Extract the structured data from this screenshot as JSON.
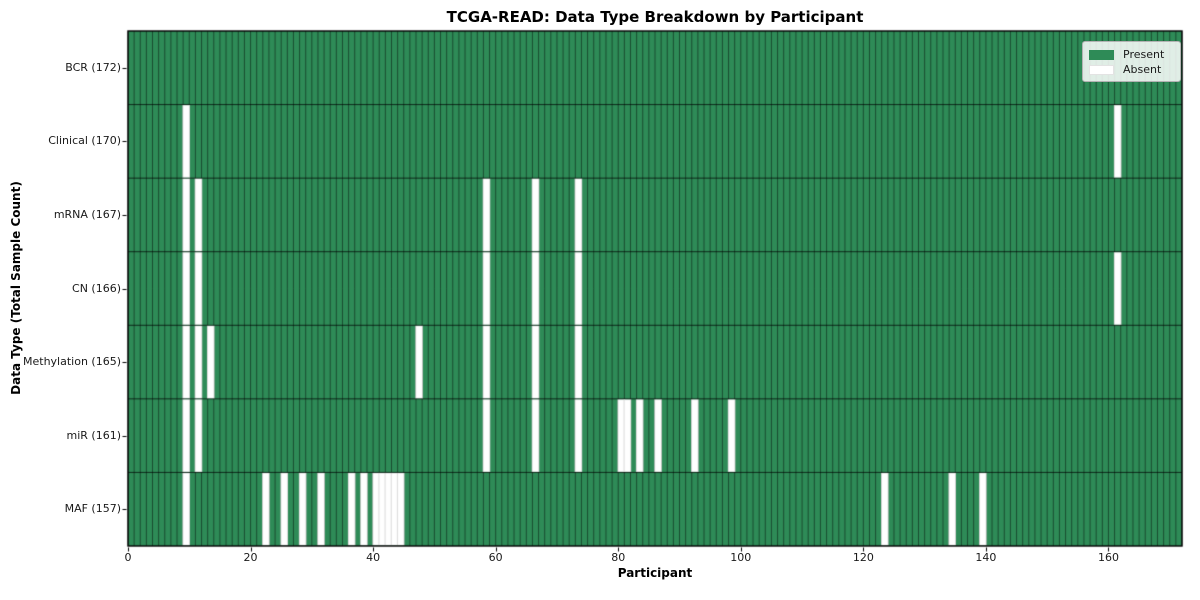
{
  "chart_data": {
    "type": "heatmap",
    "title": "TCGA-READ: Data Type Breakdown by Participant",
    "xlabel": "Participant",
    "ylabel": "Data Type (Total Sample Count)",
    "x_ticks": [
      0,
      20,
      40,
      60,
      80,
      100,
      120,
      140,
      160
    ],
    "xlim": [
      0,
      172
    ],
    "n_participants": 172,
    "grid": false,
    "legend_position": "upper right",
    "rows": [
      {
        "label": "BCR (172)",
        "count": 172,
        "absent": []
      },
      {
        "label": "Clinical (170)",
        "count": 170,
        "absent": [
          9,
          161
        ]
      },
      {
        "label": "mRNA (167)",
        "count": 167,
        "absent": [
          9,
          11,
          58,
          66,
          73
        ]
      },
      {
        "label": "CN (166)",
        "count": 166,
        "absent": [
          9,
          11,
          58,
          66,
          73,
          161
        ]
      },
      {
        "label": "Methylation (165)",
        "count": 165,
        "absent": [
          9,
          11,
          13,
          47,
          58,
          66,
          73
        ]
      },
      {
        "label": "miR (161)",
        "count": 161,
        "absent": [
          9,
          11,
          58,
          66,
          73,
          80,
          81,
          83,
          86,
          92,
          98
        ]
      },
      {
        "label": "MAF (157)",
        "count": 157,
        "absent": [
          9,
          22,
          25,
          28,
          31,
          36,
          38,
          40,
          41,
          42,
          43,
          44,
          123,
          134,
          139
        ]
      }
    ],
    "legend": [
      {
        "label": "Present",
        "color": "#2e8b57"
      },
      {
        "label": "Absent",
        "color": "#ffffff"
      }
    ],
    "colors": {
      "present": "#2e8b57",
      "absent": "#ffffff",
      "cell_edge": "rgba(0,0,0,0.5)",
      "row_boundary": "rgba(0,0,0,0.7)",
      "absent_edge": "rgba(0,0,0,0.18)",
      "plot_border": "#000000"
    }
  }
}
